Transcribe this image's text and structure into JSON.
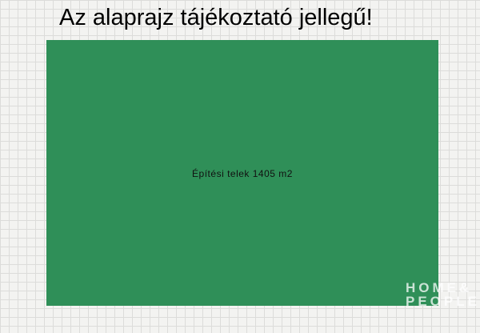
{
  "title": "Az alaprajz tájékoztató jellegű!",
  "plot": {
    "label": "Építési telek 1405 m2",
    "fill_color": "#2f8f58"
  },
  "watermark": {
    "line1": "HOME&",
    "line2": "PEOPLE"
  }
}
